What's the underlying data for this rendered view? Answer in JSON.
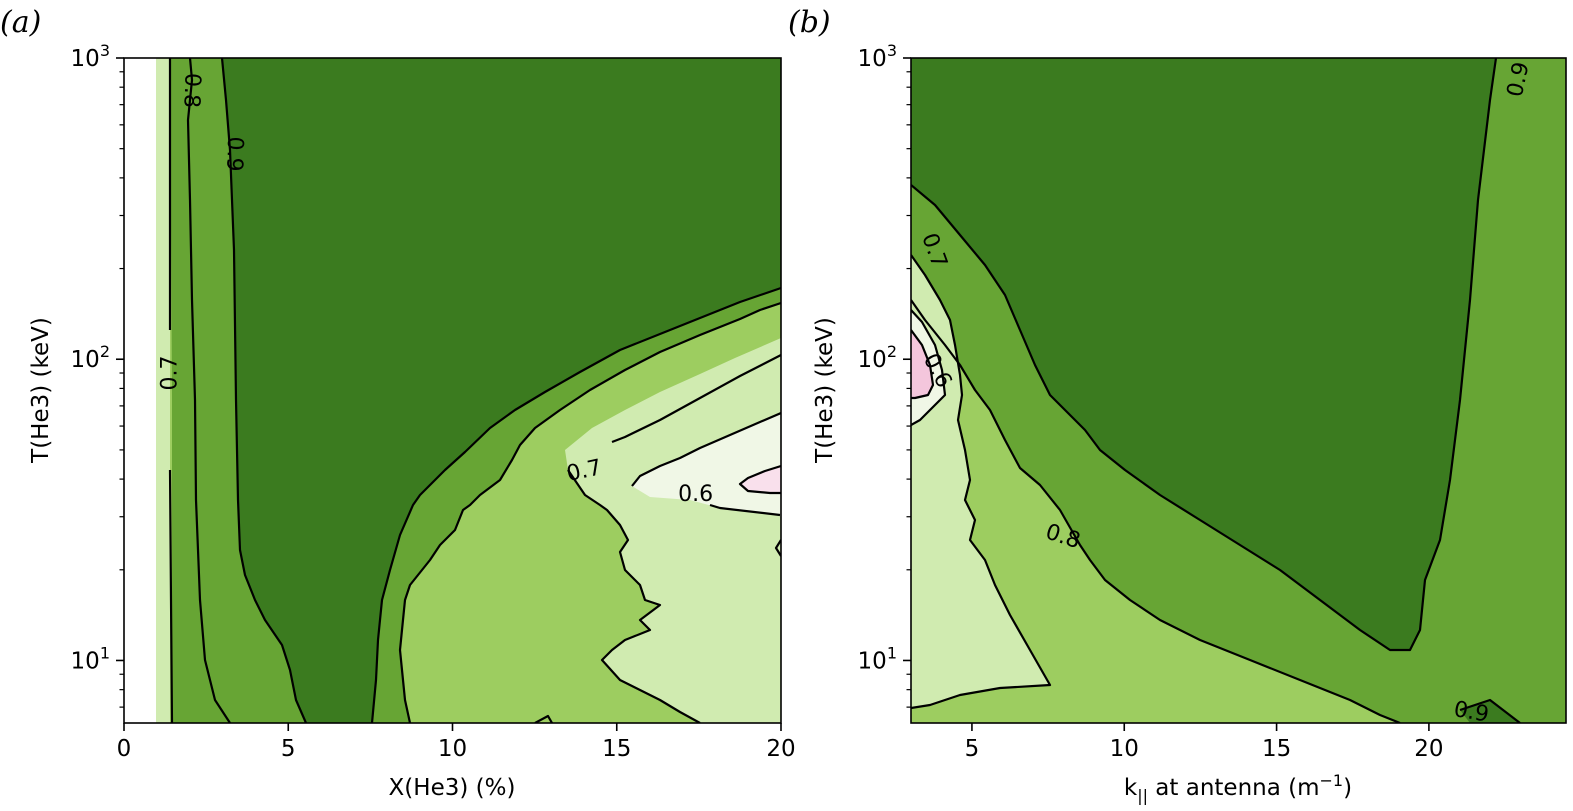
{
  "chart_data": [
    {
      "panel_label": "(a)",
      "type": "contour",
      "xlabel": "X(He3) (%)",
      "ylabel": "T(He3) (keV)",
      "xlim": [
        0,
        20
      ],
      "ylim": [
        6.2,
        1000
      ],
      "yscale": "log",
      "xticks": [
        {
          "value": 0,
          "label": "0"
        },
        {
          "value": 5,
          "label": "5"
        },
        {
          "value": 10,
          "label": "10"
        },
        {
          "value": 15,
          "label": "15"
        },
        {
          "value": 20,
          "label": "20"
        }
      ],
      "yticks_major": [
        {
          "value": 10,
          "base": "10",
          "exp": "1"
        },
        {
          "value": 100,
          "base": "10",
          "exp": "2"
        },
        {
          "value": 1000,
          "base": "10",
          "exp": "3"
        }
      ],
      "contour_levels": [
        0.55,
        0.6,
        0.7,
        0.8,
        0.9
      ],
      "contour_labels": [
        {
          "text": "0.8",
          "x": 2.1,
          "y": 780,
          "rotation": 92
        },
        {
          "text": "0.9",
          "x": 3.4,
          "y": 480,
          "rotation": 92
        },
        {
          "text": "0.7",
          "x": 1.35,
          "y": 90,
          "rotation": -90
        },
        {
          "text": "0.7",
          "x": 14.0,
          "y": 43,
          "rotation": -12
        },
        {
          "text": "0.6",
          "x": 17.4,
          "y": 36,
          "rotation": 0
        }
      ],
      "colors": {
        "gt_0.9": "#3b7b1f",
        "0.8_0.9": "#67a534",
        "0.7_0.8": "#9dcd60",
        "0.6_0.7": "#d0ebb0",
        "0.55_0.6": "#f0f7e6",
        "lt_0.55": "#f9e0ec"
      }
    },
    {
      "panel_label": "(b)",
      "type": "contour",
      "xlabel_main": "k",
      "xlabel_sub": "||",
      "xlabel_rest": " at antenna (m",
      "xlabel_sup": "−1",
      "xlabel_end": ")",
      "ylabel": "T(He3) (keV)",
      "xlim": [
        3.0,
        24.5
      ],
      "ylim": [
        6.2,
        1000
      ],
      "yscale": "log",
      "xticks": [
        {
          "value": 5,
          "label": "5"
        },
        {
          "value": 10,
          "label": "10"
        },
        {
          "value": 15,
          "label": "15"
        },
        {
          "value": 20,
          "label": "20"
        }
      ],
      "yticks_major": [
        {
          "value": 10,
          "base": "10",
          "exp": "1"
        },
        {
          "value": 100,
          "base": "10",
          "exp": "2"
        },
        {
          "value": 1000,
          "base": "10",
          "exp": "3"
        }
      ],
      "contour_levels": [
        0.5,
        0.6,
        0.7,
        0.8,
        0.9
      ],
      "contour_labels": [
        {
          "text": "0.9",
          "x": 22.9,
          "y": 850,
          "rotation": -78
        },
        {
          "text": "0.7",
          "x": 3.8,
          "y": 230,
          "rotation": 70
        },
        {
          "text": "0.6",
          "x": 3.9,
          "y": 92,
          "rotation": 62
        },
        {
          "text": "0.8",
          "x": 8.0,
          "y": 26,
          "rotation": 18
        },
        {
          "text": "0.9",
          "x": 21.4,
          "y": 6.8,
          "rotation": 10
        }
      ],
      "colors": {
        "gt_0.9": "#3b7b1f",
        "0.8_0.9": "#67a534",
        "0.7_0.8": "#9dcd60",
        "0.6_0.7": "#d0ebb0",
        "0.5_0.6": "#f0f7e6",
        "lt_0.5": "#f4c6dc"
      }
    }
  ]
}
